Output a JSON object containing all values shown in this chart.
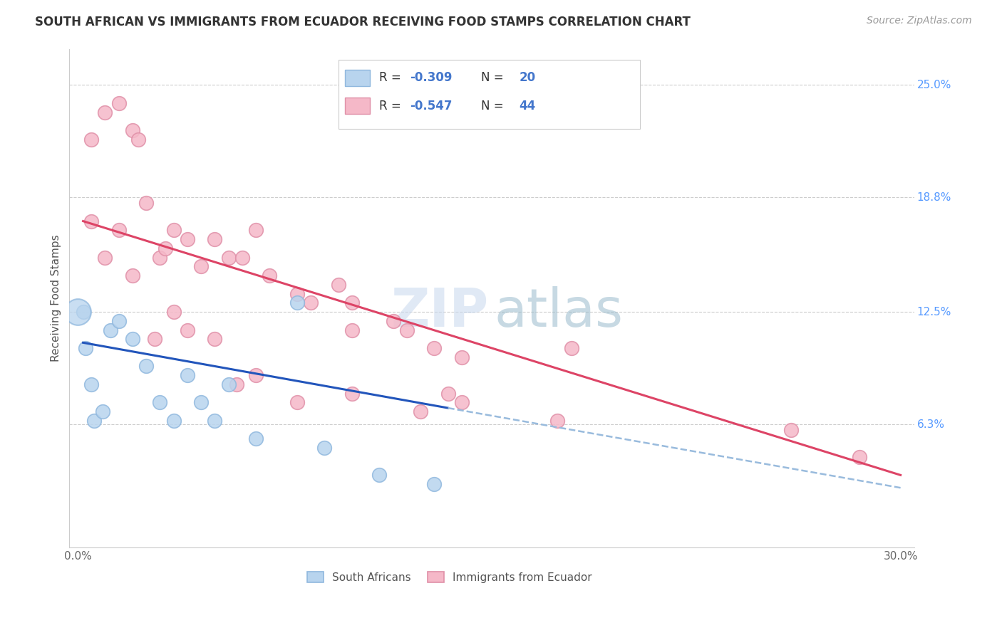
{
  "title": "SOUTH AFRICAN VS IMMIGRANTS FROM ECUADOR RECEIVING FOOD STAMPS CORRELATION CHART",
  "source": "Source: ZipAtlas.com",
  "ylabel": "Receiving Food Stamps",
  "watermark_zip": "ZIP",
  "watermark_atlas": "atlas",
  "bg_color": "#ffffff",
  "grid_color": "#cccccc",
  "title_color": "#333333",
  "axis_label_color": "#555555",
  "ytick_color": "#5599ff",
  "source_color": "#999999",
  "sa_color": "#b8d4ee",
  "sa_edge_color": "#90b8de",
  "ecu_color": "#f5b8c8",
  "ecu_edge_color": "#e090a8",
  "sa_line_color": "#2255bb",
  "ecu_line_color": "#dd4466",
  "dashed_line_color": "#99bbdd",
  "legend_box_color": "#eeeeee",
  "legend_text_black": "#333333",
  "legend_text_blue": "#4477cc",
  "sa_x": [
    0.5,
    1.2,
    2.0,
    2.5,
    3.0,
    3.5,
    4.0,
    4.5,
    5.0,
    5.5,
    6.5,
    8.0,
    9.0,
    11.0,
    13.0,
    0.2,
    0.3,
    0.6,
    0.9,
    1.5
  ],
  "sa_y": [
    8.5,
    11.5,
    11.0,
    9.5,
    7.5,
    6.5,
    9.0,
    7.5,
    6.5,
    8.5,
    5.5,
    13.0,
    5.0,
    3.5,
    3.0,
    12.5,
    10.5,
    6.5,
    7.0,
    12.0
  ],
  "ecu_x": [
    0.5,
    1.0,
    1.5,
    2.0,
    2.2,
    2.5,
    3.0,
    3.2,
    3.5,
    4.0,
    4.5,
    5.0,
    5.5,
    6.0,
    6.5,
    7.0,
    8.0,
    8.5,
    9.5,
    10.0,
    11.5,
    12.0,
    13.0,
    14.0,
    0.5,
    1.0,
    1.5,
    2.0,
    2.8,
    3.5,
    4.0,
    5.0,
    5.8,
    6.5,
    8.0,
    10.0,
    12.5,
    14.0,
    17.5,
    18.0,
    26.0,
    28.5,
    10.0,
    13.5
  ],
  "ecu_y": [
    22.0,
    23.5,
    24.0,
    22.5,
    22.0,
    18.5,
    15.5,
    16.0,
    17.0,
    16.5,
    15.0,
    16.5,
    15.5,
    15.5,
    17.0,
    14.5,
    13.5,
    13.0,
    14.0,
    13.0,
    12.0,
    11.5,
    10.5,
    10.0,
    17.5,
    15.5,
    17.0,
    14.5,
    11.0,
    12.5,
    11.5,
    11.0,
    8.5,
    9.0,
    7.5,
    8.0,
    7.0,
    7.5,
    6.5,
    10.5,
    6.0,
    4.5,
    11.5,
    8.0
  ],
  "sa_line_x0": 0.2,
  "sa_line_x1": 13.5,
  "sa_line_y0": 10.8,
  "sa_line_y1": 7.2,
  "dash_line_x0": 13.5,
  "dash_line_x1": 30.0,
  "dash_line_y0": 7.2,
  "dash_line_y1": 2.8,
  "ecu_line_x0": 0.2,
  "ecu_line_x1": 30.0,
  "ecu_line_y0": 17.5,
  "ecu_line_y1": 3.5,
  "big_dot_x": 0.0,
  "big_dot_y": 12.5,
  "xlim_min": -0.3,
  "xlim_max": 30.5,
  "ylim_min": -0.5,
  "ylim_max": 27.0,
  "ytick_vals": [
    25.0,
    18.8,
    12.5,
    6.3
  ],
  "ytick_lbls": [
    "25.0%",
    "18.8%",
    "12.5%",
    "6.3%"
  ],
  "xtick_positions": [
    0,
    5,
    10,
    15,
    20,
    25,
    30
  ],
  "xtick_labels": [
    "0.0%",
    "",
    "",
    "",
    "",
    "",
    "30.0%"
  ],
  "figsize": [
    14.06,
    8.92
  ],
  "dpi": 100
}
